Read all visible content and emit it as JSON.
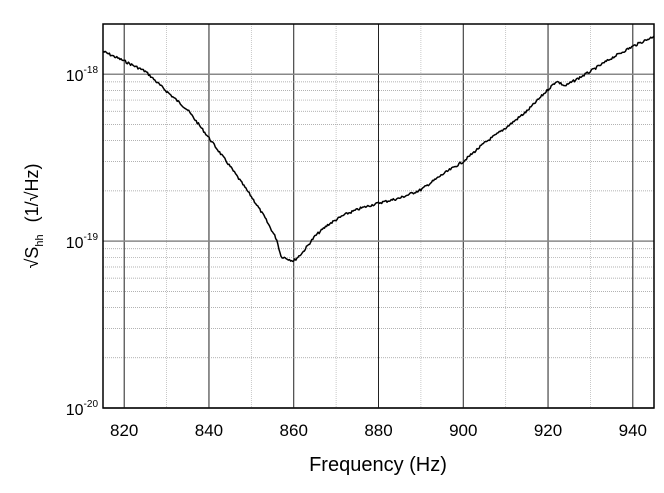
{
  "chart_data": {
    "type": "line",
    "title": "",
    "xlabel": "Frequency (Hz)",
    "ylabel": {
      "main": "√S",
      "sub": "hh",
      "unit": "(1/√Hz)"
    },
    "xlim": [
      815,
      945
    ],
    "ylim": [
      1e-20,
      2e-18
    ],
    "yscale": "log",
    "grid": true,
    "x_ticks": [
      820,
      840,
      860,
      880,
      900,
      920,
      940
    ],
    "y_ticks": [
      {
        "value": 1e-18,
        "base": "10",
        "exp": "-18"
      },
      {
        "value": 1e-19,
        "base": "10",
        "exp": "-19"
      },
      {
        "value": 1e-20,
        "base": "10",
        "exp": "-20"
      }
    ],
    "line_color": "#000000",
    "series": [
      {
        "x": [
          815,
          820,
          825,
          830,
          835,
          840,
          845,
          850,
          853,
          856,
          857,
          860,
          862,
          865,
          868,
          872,
          876,
          880,
          885,
          890,
          895,
          900,
          905,
          910,
          915,
          920,
          922,
          924,
          930,
          935,
          940,
          945
        ],
        "y": [
          1.37e-18,
          1.2e-18,
          1.04e-18,
          7.9e-19,
          6.1e-19,
          4.15e-19,
          2.8e-19,
          1.85e-19,
          1.41e-19,
          1.02e-19,
          8.1e-20,
          7.6e-20,
          8.5e-20,
          1.07e-19,
          1.25e-19,
          1.44e-19,
          1.58e-19,
          1.69e-19,
          1.81e-19,
          2.03e-19,
          2.5e-19,
          3e-19,
          3.87e-19,
          4.77e-19,
          6e-19,
          8.1e-19,
          9.1e-19,
          8.5e-19,
          1.04e-18,
          1.25e-18,
          1.47e-18,
          1.69e-18
        ]
      }
    ]
  }
}
